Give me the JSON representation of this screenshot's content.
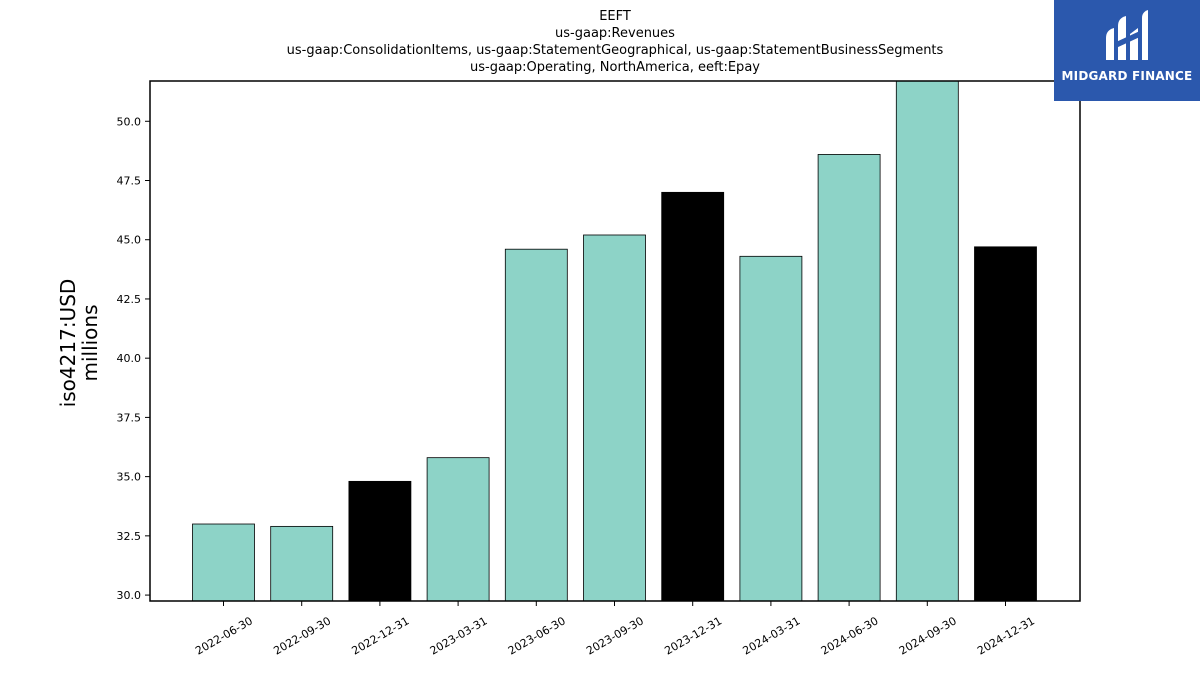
{
  "brand": {
    "name": "MIDGARD FINANCE",
    "bg_color": "#2b58ad",
    "icon": "midgard-logo-icon"
  },
  "chart_data": {
    "type": "bar",
    "title_lines": [
      "EEFT",
      "us-gaap:Revenues",
      "us-gaap:ConsolidationItems, us-gaap:StatementGeographical, us-gaap:StatementBusinessSegments",
      "us-gaap:Operating, NorthAmerica, eeft:Epay"
    ],
    "ylabel_lines": [
      "iso4217:USD",
      "millions"
    ],
    "xlabel": "",
    "categories": [
      "2022-06-30",
      "2022-09-30",
      "2022-12-31",
      "2023-03-31",
      "2023-06-30",
      "2023-09-30",
      "2023-12-31",
      "2024-03-31",
      "2024-06-30",
      "2024-09-30",
      "2024-12-31"
    ],
    "values": [
      33.0,
      32.9,
      34.8,
      35.8,
      44.6,
      45.2,
      47.0,
      44.3,
      48.6,
      51.7,
      44.7
    ],
    "highlight": [
      false,
      false,
      true,
      false,
      false,
      false,
      true,
      false,
      false,
      false,
      true
    ],
    "colors": {
      "normal": "#8dd3c7",
      "highlight": "#000000",
      "edge": "#000000"
    },
    "ylim": [
      29.75,
      51.7
    ],
    "yticks": [
      "30.0",
      "32.5",
      "35.0",
      "37.5",
      "40.0",
      "42.5",
      "45.0",
      "47.5",
      "50.0"
    ],
    "grid": false,
    "legend": "none"
  }
}
